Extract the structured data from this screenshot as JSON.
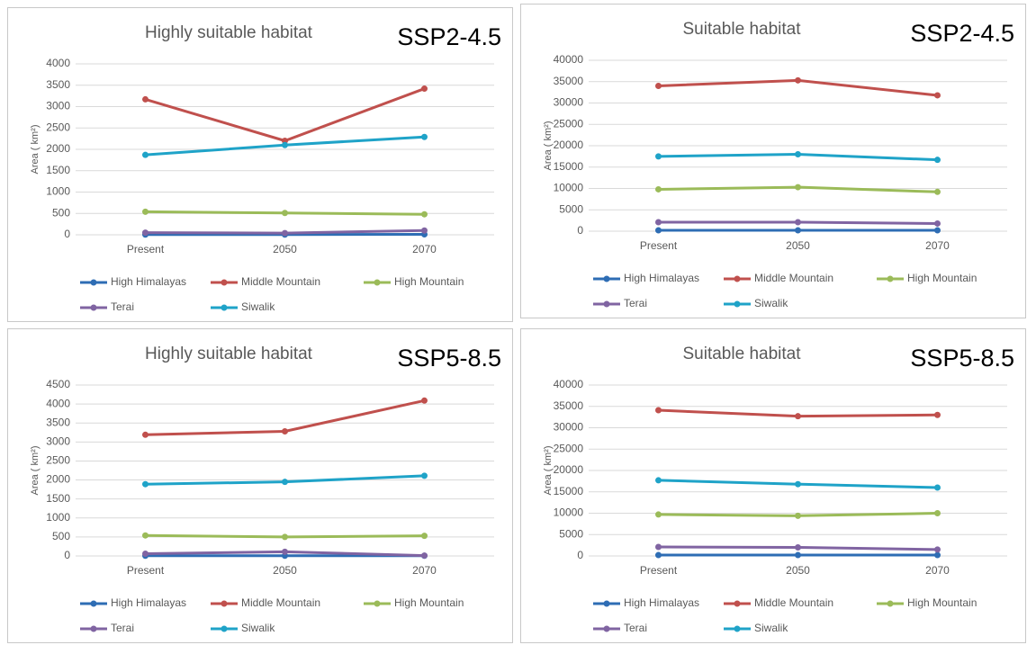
{
  "chart_data": [
    {
      "type": "line",
      "title": "Highly suitable habitat",
      "annotation": "SSP2-4.5",
      "y_label": "Area ( km²)",
      "categories": [
        "Present",
        "2050",
        "2070"
      ],
      "ylim": [
        0,
        4000
      ],
      "yticks": [
        0,
        500,
        1000,
        1500,
        2000,
        2500,
        3000,
        3500,
        4000
      ],
      "grid": true,
      "series": [
        {
          "name": "High Himalayas",
          "color": "#2e6db4",
          "values": [
            5,
            5,
            10
          ]
        },
        {
          "name": "Middle Mountain",
          "color": "#c0504d",
          "values": [
            3170,
            2200,
            3420
          ]
        },
        {
          "name": "High Mountain",
          "color": "#9bbb59",
          "values": [
            540,
            510,
            480
          ]
        },
        {
          "name": "Terai",
          "color": "#8064a2",
          "values": [
            50,
            40,
            100
          ]
        },
        {
          "name": "Siwalik",
          "color": "#1fa3c8",
          "values": [
            1870,
            2100,
            2290
          ]
        }
      ]
    },
    {
      "type": "line",
      "title": "Suitable habitat",
      "annotation": "SSP2-4.5",
      "y_label": "Area ( km²)",
      "categories": [
        "Present",
        "2050",
        "2070"
      ],
      "ylim": [
        0,
        40000
      ],
      "yticks": [
        0,
        5000,
        10000,
        15000,
        20000,
        25000,
        30000,
        35000,
        40000
      ],
      "grid": true,
      "series": [
        {
          "name": "High Himalayas",
          "color": "#2e6db4",
          "values": [
            200,
            200,
            200
          ]
        },
        {
          "name": "Middle Mountain",
          "color": "#c0504d",
          "values": [
            34000,
            35300,
            31800
          ]
        },
        {
          "name": "High Mountain",
          "color": "#9bbb59",
          "values": [
            9800,
            10300,
            9200
          ]
        },
        {
          "name": "Terai",
          "color": "#8064a2",
          "values": [
            2100,
            2100,
            1800
          ]
        },
        {
          "name": "Siwalik",
          "color": "#1fa3c8",
          "values": [
            17500,
            18000,
            16700
          ]
        }
      ]
    },
    {
      "type": "line",
      "title": "Highly suitable habitat",
      "annotation": "SSP5-8.5",
      "y_label": "Area ( km²)",
      "categories": [
        "Present",
        "2050",
        "2070"
      ],
      "ylim": [
        0,
        4500
      ],
      "yticks": [
        0,
        500,
        1000,
        1500,
        2000,
        2500,
        3000,
        3500,
        4000,
        4500
      ],
      "grid": true,
      "series": [
        {
          "name": "High Himalayas",
          "color": "#2e6db4",
          "values": [
            5,
            5,
            5
          ]
        },
        {
          "name": "Middle Mountain",
          "color": "#c0504d",
          "values": [
            3190,
            3280,
            4090
          ]
        },
        {
          "name": "High Mountain",
          "color": "#9bbb59",
          "values": [
            540,
            500,
            530
          ]
        },
        {
          "name": "Terai",
          "color": "#8064a2",
          "values": [
            60,
            110,
            10
          ]
        },
        {
          "name": "Siwalik",
          "color": "#1fa3c8",
          "values": [
            1890,
            1950,
            2110
          ]
        }
      ]
    },
    {
      "type": "line",
      "title": "Suitable habitat",
      "annotation": "SSP5-8.5",
      "y_label": "Area ( km²)",
      "categories": [
        "Present",
        "2050",
        "2070"
      ],
      "ylim": [
        0,
        40000
      ],
      "yticks": [
        0,
        5000,
        10000,
        15000,
        20000,
        25000,
        30000,
        35000,
        40000
      ],
      "grid": true,
      "series": [
        {
          "name": "High Himalayas",
          "color": "#2e6db4",
          "values": [
            200,
            200,
            200
          ]
        },
        {
          "name": "Middle Mountain",
          "color": "#c0504d",
          "values": [
            34100,
            32700,
            33000
          ]
        },
        {
          "name": "High Mountain",
          "color": "#9bbb59",
          "values": [
            9700,
            9400,
            10000
          ]
        },
        {
          "name": "Terai",
          "color": "#8064a2",
          "values": [
            2100,
            2000,
            1500
          ]
        },
        {
          "name": "Siwalik",
          "color": "#1fa3c8",
          "values": [
            17700,
            16800,
            16000
          ]
        }
      ]
    }
  ]
}
